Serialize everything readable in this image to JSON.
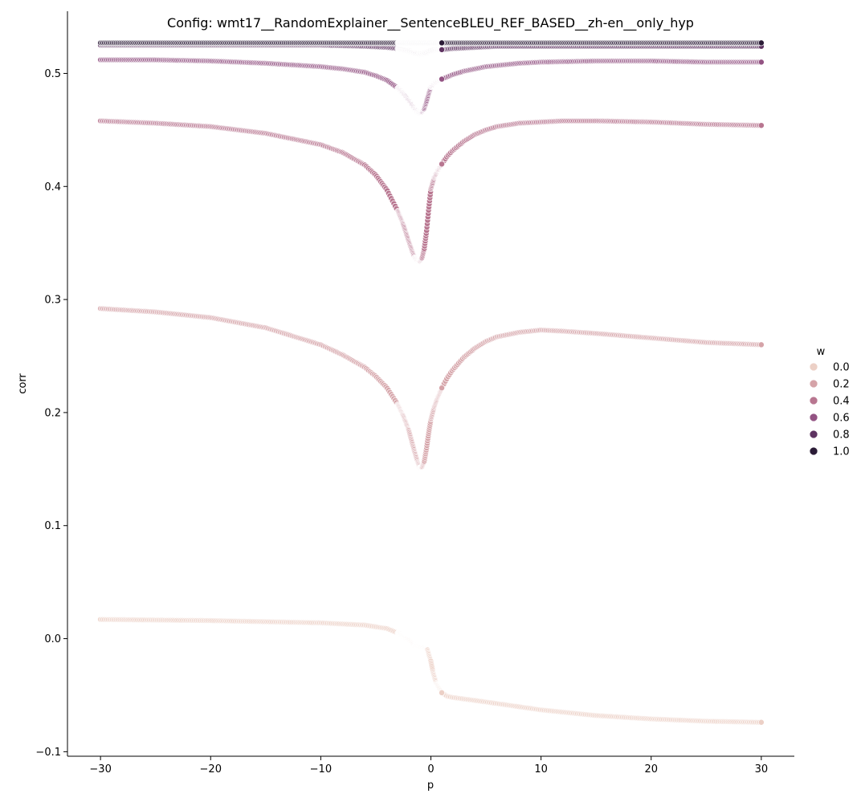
{
  "chart_data": {
    "type": "scatter",
    "title": "Config: wmt17__RandomExplainer__SentenceBLEU_REF_BASED__zh-en__only_hyp",
    "xlabel": "p",
    "ylabel": "corr",
    "xlim": [
      -33,
      33
    ],
    "ylim": [
      -0.104,
      0.555
    ],
    "xticks": [
      -30,
      -20,
      -10,
      0,
      10,
      20,
      30
    ],
    "xtick_labels": [
      "−30",
      "−20",
      "−10",
      "0",
      "10",
      "20",
      "30"
    ],
    "yticks": [
      -0.1,
      0.0,
      0.1,
      0.2,
      0.3,
      0.4,
      0.5
    ],
    "ytick_labels": [
      "−0.1",
      "0.0",
      "0.1",
      "0.2",
      "0.3",
      "0.4",
      "0.5"
    ],
    "grid": false,
    "legend": {
      "title": "w",
      "placement": "right",
      "entries": [
        {
          "label": "0.0",
          "color": "#ecd0c6"
        },
        {
          "label": "0.2",
          "color": "#d5a3a8"
        },
        {
          "label": "0.4",
          "color": "#b87690"
        },
        {
          "label": "0.6",
          "color": "#935383"
        },
        {
          "label": "0.8",
          "color": "#5e3361"
        },
        {
          "label": "1.0",
          "color": "#2b1c37"
        }
      ]
    },
    "series": [
      {
        "name": "0.0",
        "color": "#ecd0c6",
        "x": [
          -30,
          -20,
          -10,
          -6,
          -4,
          -3,
          -2,
          -1.5,
          -1,
          -0.6,
          -0.3,
          0,
          0.2,
          0.5,
          1,
          1.5,
          2,
          5,
          10,
          15,
          20,
          25,
          30
        ],
        "y": [
          0.017,
          0.016,
          0.014,
          0.012,
          0.009,
          0.005,
          -0.001,
          -0.006,
          -0.007,
          -0.008,
          -0.01,
          -0.02,
          -0.03,
          -0.04,
          -0.048,
          -0.051,
          -0.052,
          -0.056,
          -0.063,
          -0.068,
          -0.071,
          -0.073,
          -0.074
        ]
      },
      {
        "name": "0.2",
        "color": "#d5a3a8",
        "x": [
          -30,
          -25,
          -20,
          -15,
          -10,
          -8,
          -6,
          -5,
          -4,
          -3,
          -2.5,
          -2,
          -1.5,
          -1.2,
          -1,
          -0.8,
          -0.6,
          -0.4,
          -0.2,
          0,
          0.3,
          0.6,
          1,
          1.5,
          2,
          3,
          4,
          5,
          6,
          8,
          10,
          12,
          15,
          20,
          25,
          30
        ],
        "y": [
          0.292,
          0.289,
          0.284,
          0.275,
          0.26,
          0.251,
          0.24,
          0.232,
          0.222,
          0.207,
          0.197,
          0.184,
          0.166,
          0.156,
          0.151,
          0.152,
          0.157,
          0.168,
          0.182,
          0.194,
          0.205,
          0.213,
          0.222,
          0.231,
          0.238,
          0.249,
          0.257,
          0.263,
          0.267,
          0.271,
          0.273,
          0.272,
          0.27,
          0.266,
          0.262,
          0.26
        ]
      },
      {
        "name": "0.4",
        "color": "#b87690",
        "x": [
          -30,
          -25,
          -20,
          -15,
          -10,
          -8,
          -6,
          -5,
          -4,
          -3,
          -2.5,
          -2,
          -1.5,
          -1.2,
          -1,
          -0.8,
          -0.6,
          -0.4,
          -0.2,
          0,
          0.3,
          0.6,
          1,
          1.5,
          2,
          3,
          4,
          5,
          6,
          8,
          10,
          12,
          15,
          20,
          25,
          30
        ],
        "y": [
          0.458,
          0.456,
          0.453,
          0.447,
          0.437,
          0.43,
          0.419,
          0.41,
          0.397,
          0.378,
          0.366,
          0.351,
          0.337,
          0.334,
          0.334,
          0.337,
          0.345,
          0.36,
          0.38,
          0.398,
          0.408,
          0.414,
          0.42,
          0.427,
          0.432,
          0.44,
          0.446,
          0.45,
          0.453,
          0.456,
          0.457,
          0.458,
          0.458,
          0.457,
          0.455,
          0.454
        ]
      },
      {
        "name": "0.6",
        "color": "#935383",
        "x": [
          -30,
          -25,
          -20,
          -15,
          -10,
          -8,
          -6,
          -5,
          -4,
          -3,
          -2.5,
          -2,
          -1.5,
          -1.2,
          -1,
          -0.8,
          -0.6,
          -0.4,
          -0.2,
          0,
          0.3,
          0.6,
          1,
          1.5,
          2,
          3,
          4,
          5,
          6,
          8,
          10,
          15,
          20,
          25,
          30
        ],
        "y": [
          0.512,
          0.512,
          0.511,
          0.509,
          0.506,
          0.504,
          0.501,
          0.498,
          0.494,
          0.487,
          0.482,
          0.476,
          0.469,
          0.466,
          0.465,
          0.466,
          0.469,
          0.475,
          0.482,
          0.488,
          0.491,
          0.493,
          0.495,
          0.497,
          0.499,
          0.502,
          0.504,
          0.506,
          0.507,
          0.509,
          0.51,
          0.511,
          0.511,
          0.51,
          0.51
        ]
      },
      {
        "name": "0.8",
        "color": "#5e3361",
        "x": [
          -30,
          -20,
          -10,
          -6,
          -4,
          -3,
          -2,
          -1.5,
          -1,
          -0.5,
          0,
          0.5,
          1,
          2,
          4,
          6,
          10,
          20,
          30
        ],
        "y": [
          0.525,
          0.525,
          0.525,
          0.524,
          0.523,
          0.522,
          0.52,
          0.518,
          0.517,
          0.518,
          0.52,
          0.521,
          0.521,
          0.522,
          0.523,
          0.524,
          0.524,
          0.524,
          0.524
        ]
      },
      {
        "name": "1.0",
        "color": "#2b1c37",
        "x": [
          -30,
          -20,
          -10,
          0,
          10,
          20,
          30
        ],
        "y": [
          0.527,
          0.527,
          0.527,
          0.527,
          0.527,
          0.527,
          0.527
        ]
      }
    ]
  }
}
